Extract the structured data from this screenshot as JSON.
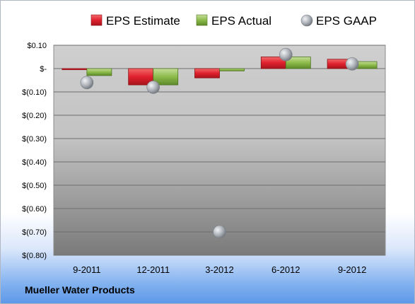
{
  "company": "Mueller Water Products",
  "chart_data": {
    "type": "bar",
    "categories": [
      "9-2011",
      "12-2011",
      "3-2012",
      "6-2012",
      "9-2012"
    ],
    "series": [
      {
        "name": "EPS Estimate",
        "kind": "bar",
        "color": "#e0212e",
        "values": [
          -0.005,
          -0.07,
          -0.04,
          0.05,
          0.04
        ]
      },
      {
        "name": "EPS Actual",
        "kind": "bar",
        "color": "#8dbb4a",
        "values": [
          -0.03,
          -0.07,
          -0.01,
          0.05,
          0.03
        ]
      },
      {
        "name": "EPS GAAP",
        "kind": "marker",
        "color": "#b8bcc2",
        "values": [
          -0.06,
          -0.08,
          -0.7,
          0.06,
          0.02
        ]
      }
    ],
    "y_ticks": [
      {
        "value": 0.1,
        "label": "$0.10"
      },
      {
        "value": 0.0,
        "label": "$-"
      },
      {
        "value": -0.1,
        "label": "$(0.10)"
      },
      {
        "value": -0.2,
        "label": "$(0.20)"
      },
      {
        "value": -0.3,
        "label": "$(0.30)"
      },
      {
        "value": -0.4,
        "label": "$(0.40)"
      },
      {
        "value": -0.5,
        "label": "$(0.50)"
      },
      {
        "value": -0.6,
        "label": "$(0.60)"
      },
      {
        "value": -0.7,
        "label": "$(0.70)"
      },
      {
        "value": -0.8,
        "label": "$(0.80)"
      }
    ],
    "ylim": [
      -0.8,
      0.1
    ],
    "grid": true,
    "legend": "top"
  }
}
